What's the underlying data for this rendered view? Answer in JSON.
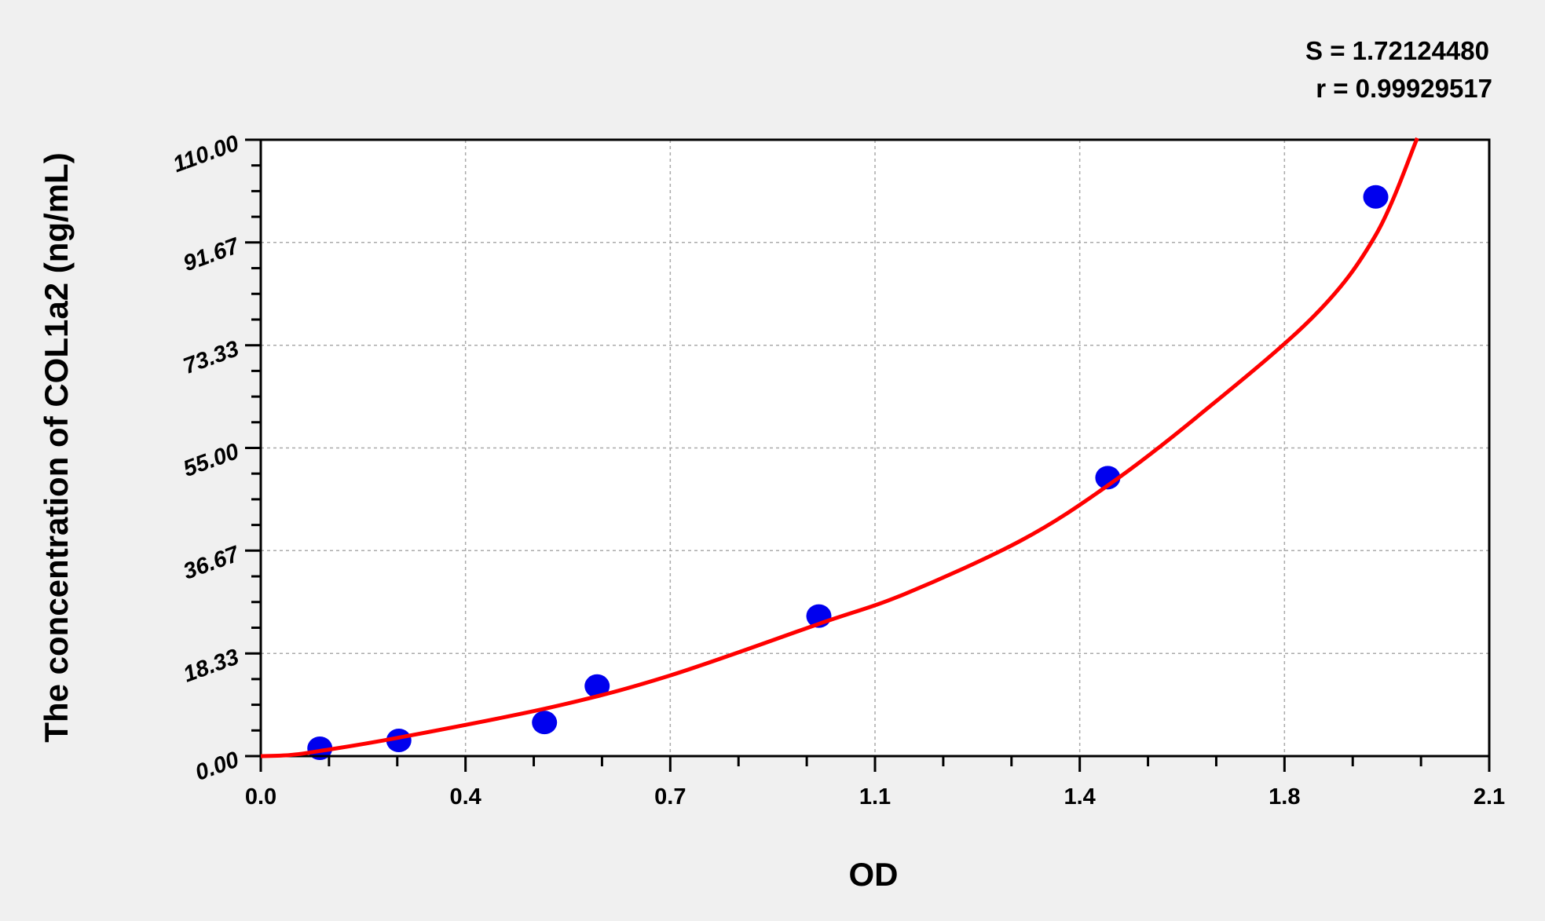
{
  "chart_data": {
    "type": "scatter",
    "title": "",
    "xlabel": "OD",
    "ylabel": "The concentration of COL1a2 (ng/mL)",
    "xlim": [
      0,
      2.1
    ],
    "ylim": [
      0,
      110
    ],
    "x_ticks": [
      0.0,
      0.35,
      0.7,
      1.05,
      1.4,
      1.75,
      2.1
    ],
    "x_tick_labels": [
      "0.0",
      "0.4",
      "0.7",
      "1.1",
      "1.4",
      "1.8",
      "2.1"
    ],
    "y_ticks": [
      0,
      18.33,
      36.67,
      55,
      73.33,
      91.67,
      110
    ],
    "y_tick_labels": [
      "0.00",
      "18.33",
      "36.67",
      "55.00",
      "73.33",
      "91.67",
      "110.00"
    ],
    "grid": true,
    "points": {
      "x": [
        0.101,
        0.236,
        0.485,
        0.575,
        0.954,
        1.448,
        1.906
      ],
      "y": [
        1.4,
        2.8,
        6.0,
        12.5,
        25.0,
        49.7,
        99.8
      ],
      "color": "#0000ee"
    },
    "fit_curve": {
      "x": [
        0.0,
        0.05,
        0.1,
        0.236,
        0.5,
        0.7,
        0.954,
        1.1,
        1.3,
        1.448,
        1.6,
        1.8,
        1.906,
        1.977
      ],
      "y": [
        0.0,
        0.2,
        0.9,
        3.3,
        8.8,
        14.4,
        23.6,
        28.9,
        38.5,
        48.3,
        60.5,
        78.5,
        93.0,
        110.3
      ],
      "color": "#ff0000"
    },
    "annotations": [
      "S = 1.72124480",
      "r = 0.99929517"
    ]
  }
}
